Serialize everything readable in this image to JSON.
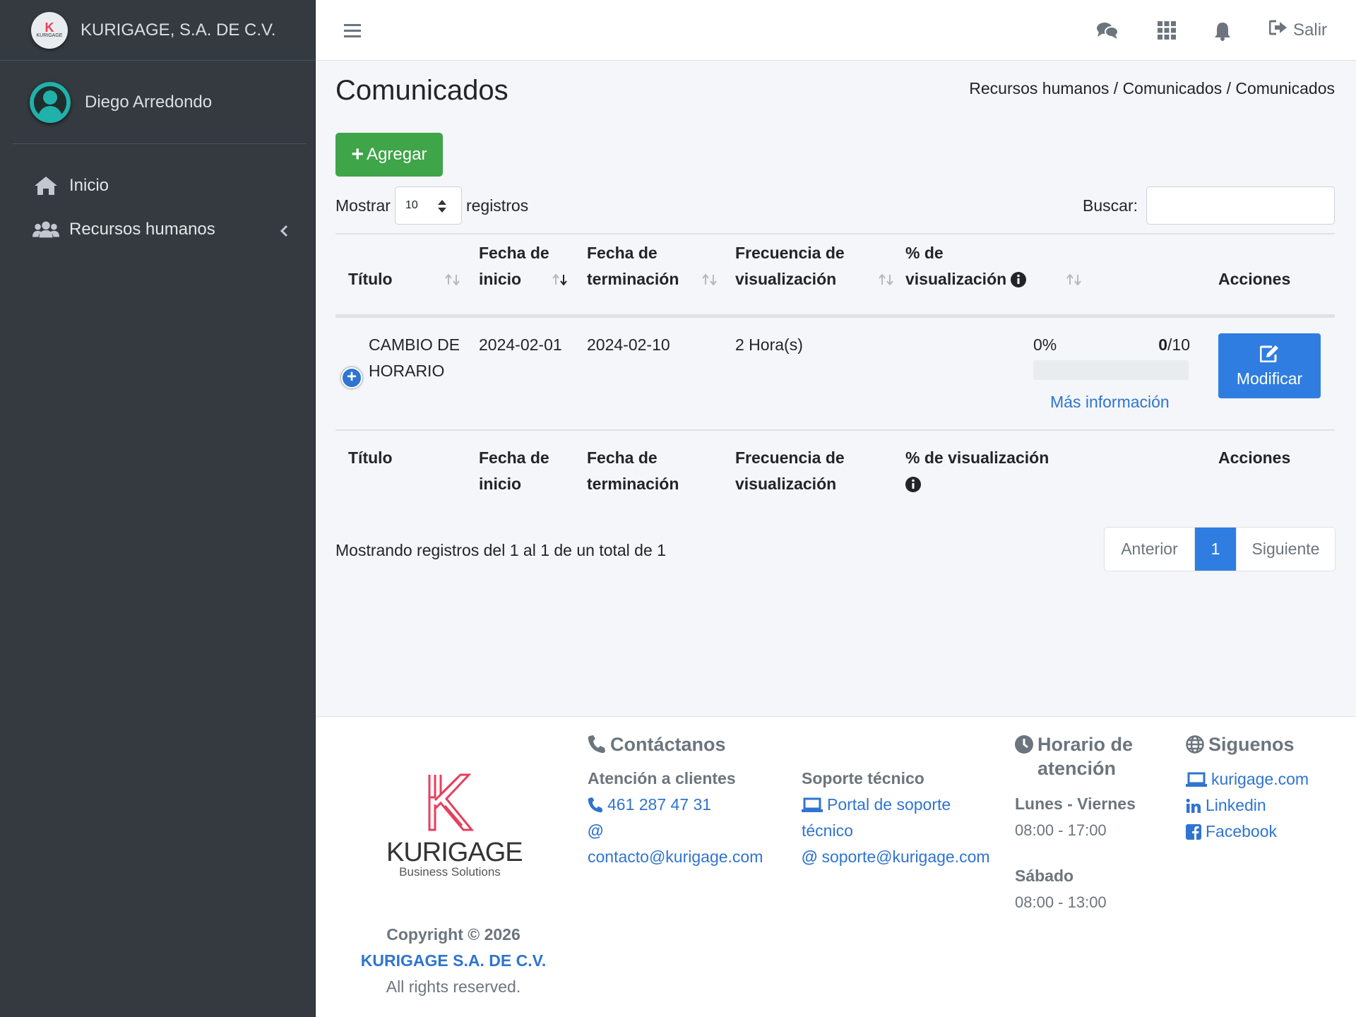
{
  "brand": {
    "name": "KURIGAGE, S.A. DE C.V.",
    "logo_letter": "K",
    "logo_text": "KURIGAGE"
  },
  "user": {
    "name": "Diego Arredondo"
  },
  "sidebar": {
    "items": [
      {
        "label": "Inicio",
        "icon": "home-icon"
      },
      {
        "label": "Recursos humanos",
        "icon": "users-icon"
      }
    ]
  },
  "topbar": {
    "logout_label": "Salir"
  },
  "page": {
    "title": "Comunicados",
    "breadcrumb": "Recursos humanos / Comunicados / Comunicados",
    "add_button": "Agregar"
  },
  "table_controls": {
    "show_label": "Mostrar",
    "page_size": "10",
    "records_label": "registros",
    "search_label": "Buscar:",
    "search_value": ""
  },
  "table": {
    "headers": {
      "titulo": "Título",
      "fecha_inicio_1": "Fecha de",
      "fecha_inicio_2": "inicio",
      "fecha_term_1": "Fecha de",
      "fecha_term_2": "terminación",
      "frecuencia_1": "Frecuencia de",
      "frecuencia_2": "visualización",
      "porc_1": "% de",
      "porc_2": "visualización",
      "porc_full": "% de visualización",
      "acciones": "Acciones"
    },
    "rows": [
      {
        "titulo_1": "CAMBIO DE",
        "titulo_2": "HORARIO",
        "fecha_inicio": "2024-02-01",
        "fecha_terminacion": "2024-02-10",
        "frecuencia": "2 Hora(s)",
        "porcentaje": "0%",
        "vistos": "0",
        "total": "/10",
        "progress_fraction": 0,
        "mas_info": "Más información",
        "accion": "Modificar"
      }
    ]
  },
  "table_info": "Mostrando registros del 1 al 1 de un total de 1",
  "pagination": {
    "prev": "Anterior",
    "current": "1",
    "next": "Siguiente"
  },
  "footer": {
    "logo_word": "KURIGAGE",
    "logo_sub": "Business Solutions",
    "copyright_1": "Copyright © 2026",
    "copyright_2": "KURIGAGE S.A. DE C.V.",
    "copyright_3": "All rights reserved.",
    "contact_title": "Contáctanos",
    "atencion_title": "Atención a clientes",
    "phone": "461 287 47 31",
    "at_symbol": "@",
    "email_contact": "contacto@kurigage.com",
    "soporte_title": "Soporte técnico",
    "portal_1": "Portal de soporte",
    "portal_2": "técnico",
    "email_support": "soporte@kurigage.com",
    "horario_title_1": "Horario de",
    "horario_title_2": "atención",
    "weekdays": "Lunes - Viernes",
    "weekdays_hours": "08:00 - 17:00",
    "saturday": "Sábado",
    "saturday_hours": "08:00 - 13:00",
    "follow_title": "Siguenos",
    "site": "kurigage.com",
    "linkedin": "Linkedin",
    "facebook": "Facebook"
  },
  "colors": {
    "sidebar": "#343a40",
    "primary": "#2f7de1",
    "success": "#3ea548",
    "brand_red": "#e83e5c"
  }
}
